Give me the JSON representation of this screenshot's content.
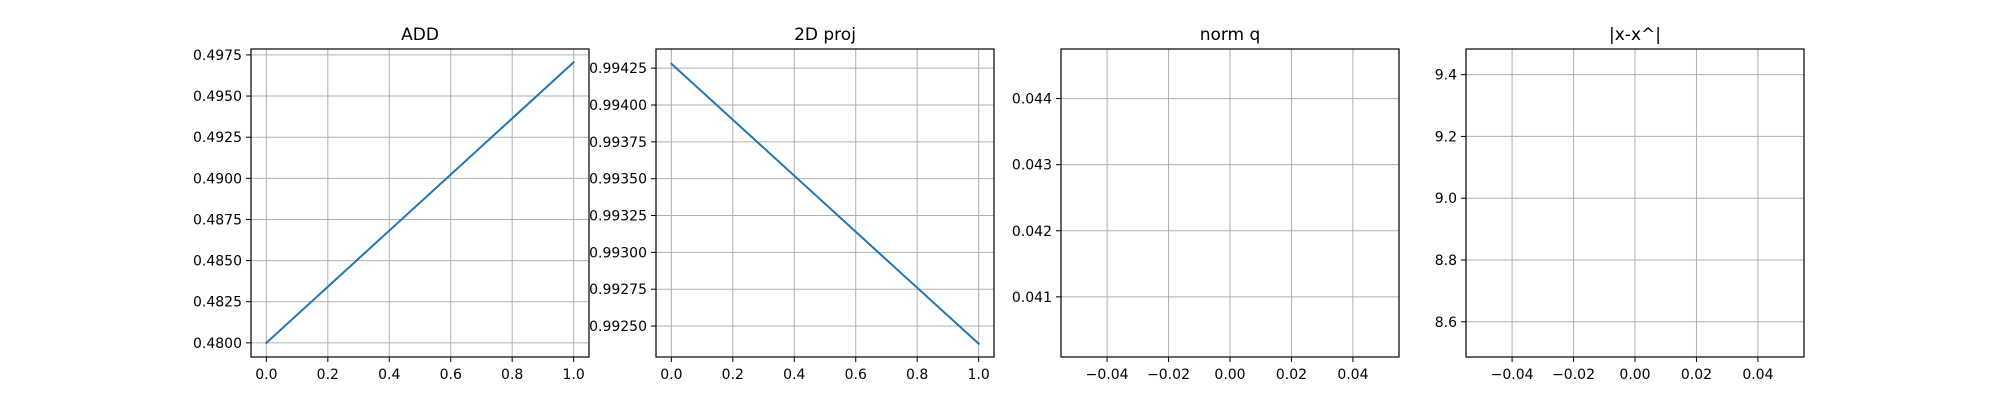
{
  "figure": {
    "background": "#ffffff",
    "line_color": "#1f77b4",
    "grid_color": "#b0b0b0"
  },
  "chart_data": [
    {
      "type": "line",
      "title": "ADD",
      "xlabel": "",
      "ylabel": "",
      "grid": true,
      "xlim": [
        -0.05,
        1.05
      ],
      "ylim": [
        0.47914,
        0.49786
      ],
      "xticks": [
        0.0,
        0.2,
        0.4,
        0.6,
        0.8,
        1.0
      ],
      "xtick_labels": [
        "0.0",
        "0.2",
        "0.4",
        "0.6",
        "0.8",
        "1.0"
      ],
      "yticks": [
        0.48,
        0.4825,
        0.485,
        0.4875,
        0.49,
        0.4925,
        0.495,
        0.4975
      ],
      "ytick_labels": [
        "0.4800",
        "0.4825",
        "0.4850",
        "0.4875",
        "0.4900",
        "0.4925",
        "0.4950",
        "0.4975"
      ],
      "series": [
        {
          "x": [
            0,
            1
          ],
          "y": [
            0.48,
            0.49705
          ]
        }
      ]
    },
    {
      "type": "line",
      "title": "2D proj",
      "xlabel": "",
      "ylabel": "",
      "grid": true,
      "xlim": [
        -0.05,
        1.05
      ],
      "ylim": [
        0.99229,
        0.99438
      ],
      "xticks": [
        0.0,
        0.2,
        0.4,
        0.6,
        0.8,
        1.0
      ],
      "xtick_labels": [
        "0.0",
        "0.2",
        "0.4",
        "0.6",
        "0.8",
        "1.0"
      ],
      "yticks": [
        0.9925,
        0.99275,
        0.993,
        0.99325,
        0.9935,
        0.99375,
        0.994,
        0.99425
      ],
      "ytick_labels": [
        "0.99250",
        "0.99275",
        "0.99300",
        "0.99325",
        "0.99350",
        "0.99375",
        "0.99400",
        "0.99425"
      ],
      "series": [
        {
          "x": [
            0,
            1
          ],
          "y": [
            0.99428,
            0.99238
          ]
        }
      ]
    },
    {
      "type": "line",
      "title": "norm q",
      "xlabel": "",
      "ylabel": "",
      "grid": true,
      "xlim": [
        -0.055,
        0.055
      ],
      "ylim": [
        0.04009,
        0.04475
      ],
      "xticks": [
        -0.04,
        -0.02,
        0.0,
        0.02,
        0.04
      ],
      "xtick_labels": [
        "−0.04",
        "−0.02",
        "0.00",
        "0.02",
        "0.04"
      ],
      "yticks": [
        0.041,
        0.042,
        0.043,
        0.044
      ],
      "ytick_labels": [
        "0.041",
        "0.042",
        "0.043",
        "0.044"
      ],
      "series": []
    },
    {
      "type": "line",
      "title": "|x-x^|",
      "xlabel": "",
      "ylabel": "",
      "grid": true,
      "xlim": [
        -0.055,
        0.055
      ],
      "ylim": [
        8.486,
        9.483
      ],
      "xticks": [
        -0.04,
        -0.02,
        0.0,
        0.02,
        0.04
      ],
      "xtick_labels": [
        "−0.04",
        "−0.02",
        "0.00",
        "0.02",
        "0.04"
      ],
      "yticks": [
        8.6,
        8.8,
        9.0,
        9.2,
        9.4
      ],
      "ytick_labels": [
        "8.6",
        "8.8",
        "9.0",
        "9.2",
        "9.4"
      ],
      "series": []
    }
  ]
}
